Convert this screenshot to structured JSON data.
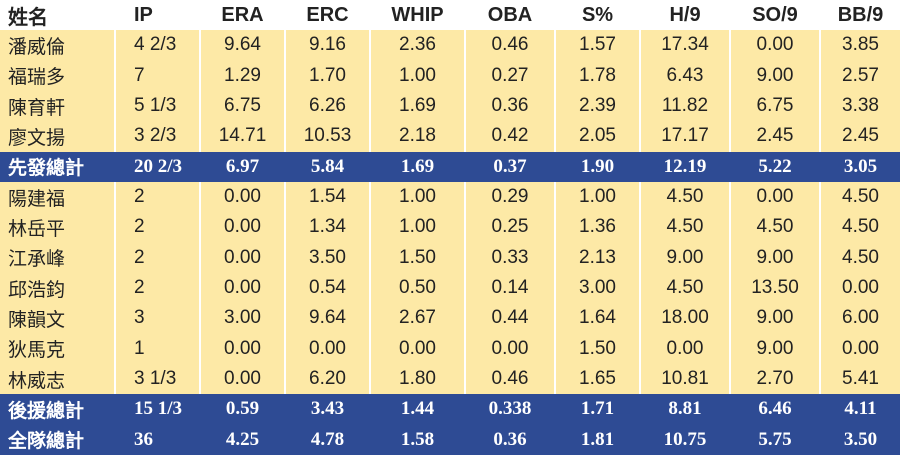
{
  "table": {
    "header": [
      "姓名",
      "IP",
      "ERA",
      "ERC",
      "WHIP",
      "OBA",
      "S%",
      "H/9",
      "SO/9",
      "BB/9"
    ],
    "starters": {
      "rows": [
        [
          "潘威倫",
          "4 2/3",
          "9.64",
          "9.16",
          "2.36",
          "0.46",
          "1.57",
          "17.34",
          "0.00",
          "3.85"
        ],
        [
          "福瑞多",
          "7",
          "1.29",
          "1.70",
          "1.00",
          "0.27",
          "1.78",
          "6.43",
          "9.00",
          "2.57"
        ],
        [
          "陳育軒",
          "5 1/3",
          "6.75",
          "6.26",
          "1.69",
          "0.36",
          "2.39",
          "11.82",
          "6.75",
          "3.38"
        ],
        [
          "廖文揚",
          "3 2/3",
          "14.71",
          "10.53",
          "2.18",
          "0.42",
          "2.05",
          "17.17",
          "2.45",
          "2.45"
        ]
      ],
      "total": [
        "先發總計",
        "20 2/3",
        "6.97",
        "5.84",
        "1.69",
        "0.37",
        "1.90",
        "12.19",
        "5.22",
        "3.05"
      ]
    },
    "relievers": {
      "rows": [
        [
          "陽建福",
          "2",
          "0.00",
          "1.54",
          "1.00",
          "0.29",
          "1.00",
          "4.50",
          "0.00",
          "4.50"
        ],
        [
          "林岳平",
          "2",
          "0.00",
          "1.34",
          "1.00",
          "0.25",
          "1.36",
          "4.50",
          "4.50",
          "4.50"
        ],
        [
          "江承峰",
          "2",
          "0.00",
          "3.50",
          "1.50",
          "0.33",
          "2.13",
          "9.00",
          "9.00",
          "4.50"
        ],
        [
          "邱浩鈞",
          "2",
          "0.00",
          "0.54",
          "0.50",
          "0.14",
          "3.00",
          "4.50",
          "13.50",
          "0.00"
        ],
        [
          "陳韻文",
          "3",
          "3.00",
          "9.64",
          "2.67",
          "0.44",
          "1.64",
          "18.00",
          "9.00",
          "6.00"
        ],
        [
          "狄馬克",
          "1",
          "0.00",
          "0.00",
          "0.00",
          "0.00",
          "1.50",
          "0.00",
          "9.00",
          "0.00"
        ],
        [
          "林威志",
          "3 1/3",
          "0.00",
          "6.20",
          "1.80",
          "0.46",
          "1.65",
          "10.81",
          "2.70",
          "5.41"
        ]
      ],
      "total": [
        "後援總計",
        "15 1/3",
        "0.59",
        "3.43",
        "1.44",
        "0.338",
        "1.71",
        "8.81",
        "6.46",
        "4.11"
      ]
    },
    "team_total": [
      "全隊總計",
      "36",
      "4.25",
      "4.78",
      "1.58",
      "0.36",
      "1.81",
      "10.75",
      "5.75",
      "3.50"
    ]
  }
}
